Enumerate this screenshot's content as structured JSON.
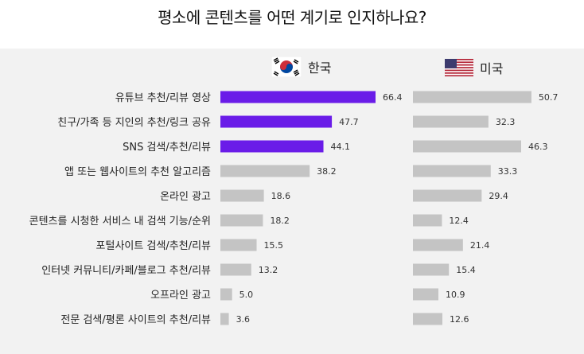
{
  "title": "평소에 콘텐츠를 어떤 계기로 인지하나요?",
  "chart_data": {
    "type": "bar",
    "orientation": "horizontal",
    "title": "평소에 콘텐츠를 어떤 계기로 인지하나요?",
    "categories": [
      "유튜브 추천/리뷰 영상",
      "친구/가족 등 지인의 추천/링크 공유",
      "SNS 검색/추천/리뷰",
      "앱 또는 웹사이트의 추천 알고리즘",
      "온라인 광고",
      "콘텐츠를 시청한 서비스 내 검색 기능/순위",
      "포털사이트 검색/추천/리뷰",
      "인터넷 커뮤니티/카페/블로그 추천/리뷰",
      "오프라인 광고",
      "전문 검색/평론 사이트의 추천/리뷰"
    ],
    "series": [
      {
        "name": "한국",
        "values": [
          66.4,
          47.7,
          44.1,
          38.2,
          18.6,
          18.2,
          15.5,
          13.2,
          5.0,
          3.6
        ],
        "labels": [
          "66.4",
          "47.7",
          "44.1",
          "38.2",
          "18.6",
          "18.2",
          "15.5",
          "13.2",
          "5.0",
          "3.6"
        ],
        "highlight_count": 3
      },
      {
        "name": "미국",
        "values": [
          50.7,
          32.3,
          46.3,
          33.3,
          29.4,
          12.4,
          21.4,
          15.4,
          10.9,
          12.6
        ],
        "labels": [
          "50.7",
          "32.3",
          "46.3",
          "33.3",
          "29.4",
          "12.4",
          "21.4",
          "15.4",
          "10.9",
          "12.6"
        ],
        "highlight_count": 0
      }
    ],
    "colors": {
      "highlight": "#6a1ce8",
      "default": "#c4c4c4",
      "panel_bg": "#f2f2f2"
    },
    "icons": {
      "korea": "korea-flag-icon",
      "usa": "usa-flag-icon"
    },
    "grid": false,
    "legend": "top"
  }
}
